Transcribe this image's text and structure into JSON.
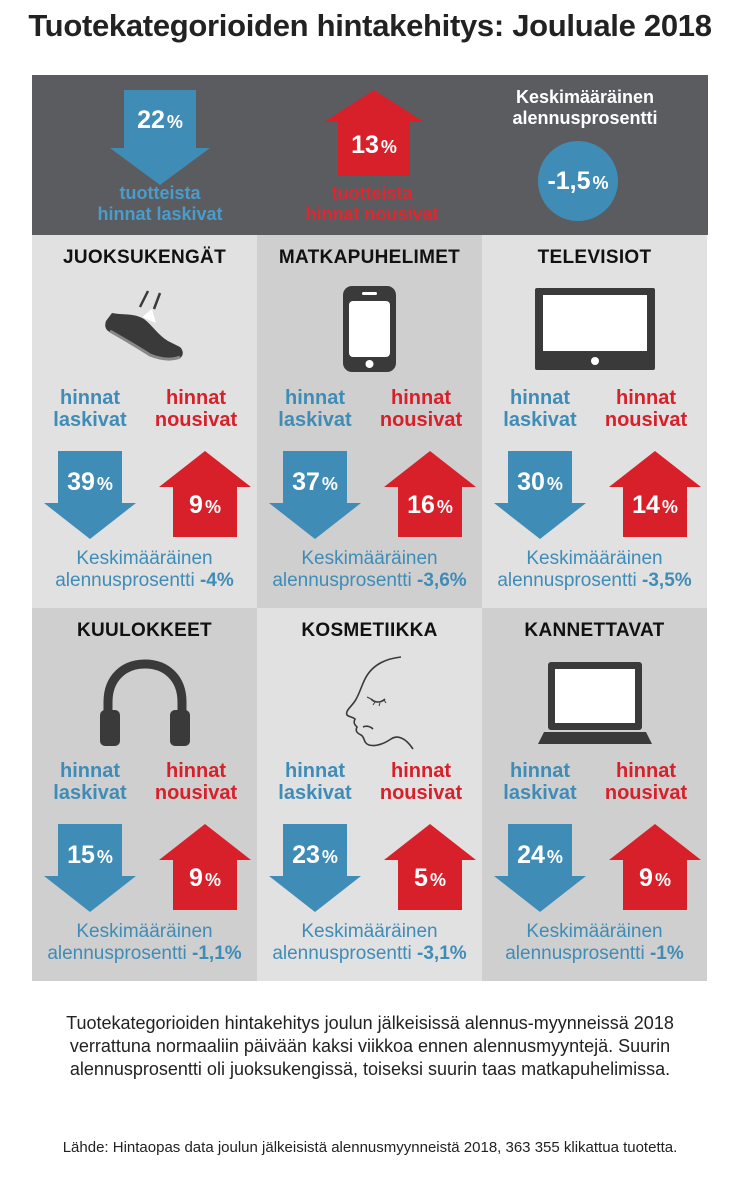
{
  "title": "Tuotekategorioiden hintakehitys: Jouluale 2018",
  "colors": {
    "blue": "#3f8cb7",
    "red": "#d8202a",
    "banner": "#5a5c5f"
  },
  "summary_banner": {
    "down_pct": "22",
    "down_label_1": "tuotteista",
    "down_label_2": "hinnat laskivat",
    "up_pct": "13",
    "up_label_1": "tuotteista",
    "up_label_2": "hinnat nousivat",
    "avg_label_1": "Keskimääräinen",
    "avg_label_2": "alennusprosentti",
    "avg_value": "-1,5"
  },
  "pct_sign": "%",
  "down_label_1": "hinnat",
  "down_label_2": "laskivat",
  "up_label_1": "hinnat",
  "up_label_2": "nousivat",
  "avg_label_1": "Keskimääräinen",
  "avg_label_2": "alennusprosentti",
  "chart_data": {
    "type": "bar",
    "categories": [
      "JUOKSUKENGÄT",
      "MATKAPUHELIMET",
      "TELEVISIOT",
      "KUULOKKEET",
      "KOSMETIIKKA",
      "KANNETTAVAT"
    ],
    "series": [
      {
        "name": "hinnat laskivat",
        "values": [
          39,
          37,
          30,
          15,
          23,
          24
        ]
      },
      {
        "name": "hinnat nousivat",
        "values": [
          9,
          16,
          14,
          9,
          5,
          9
        ]
      }
    ],
    "avg_discount": [
      "-4%",
      "-3,6%",
      "-3,5%",
      "-1,1%",
      "-3,1%",
      "-1%"
    ],
    "overall": {
      "down": 22,
      "up": 13,
      "avg_discount": "-1,5%"
    }
  },
  "categories": [
    {
      "name": "JUOKSUKENGÄT",
      "icon": "shoe-icon",
      "down": "39",
      "up": "9",
      "avg": "-4%"
    },
    {
      "name": "MATKAPUHELIMET",
      "icon": "phone-icon",
      "down": "37",
      "up": "16",
      "avg": "-3,6%"
    },
    {
      "name": "TELEVISIOT",
      "icon": "tv-icon",
      "down": "30",
      "up": "14",
      "avg": "-3,5%"
    },
    {
      "name": "KUULOKKEET",
      "icon": "headphones-icon",
      "down": "15",
      "up": "9",
      "avg": "-1,1%"
    },
    {
      "name": "KOSMETIIKKA",
      "icon": "face-icon",
      "down": "23",
      "up": "5",
      "avg": "-3,1%"
    },
    {
      "name": "KANNETTAVAT",
      "icon": "laptop-icon",
      "down": "24",
      "up": "9",
      "avg": "-1%"
    }
  ],
  "summary_text": "Tuotekategorioiden hintakehitys joulun jälkeisissä alennus-myynneissä 2018 verrattuna normaaliin päivään kaksi viikkoa ennen alennusmyyntejä. Suurin alennusprosentti oli juoksukengissä, toiseksi suurin taas matkapuhelimissa.",
  "source_text": "Lähde: Hintaopas data joulun jälkeisistä alennusmyynneistä 2018, 363 355 klikattua tuotetta."
}
